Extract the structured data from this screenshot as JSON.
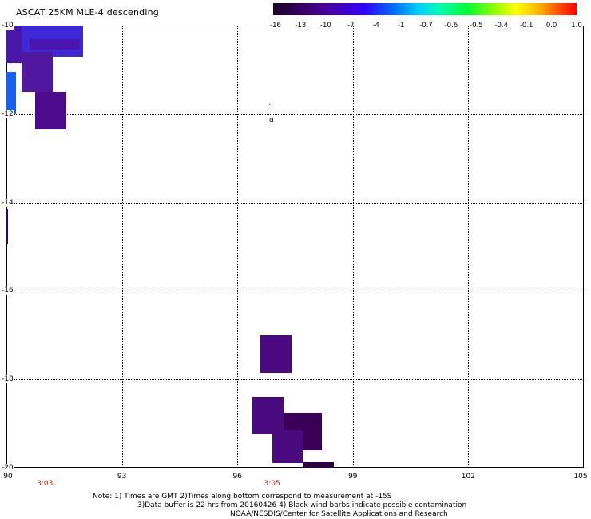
{
  "title": "ASCAT 25KM MLE-4 descending",
  "colorbar": {
    "labels": [
      "-16",
      "-13",
      "-10",
      "-7",
      "-4",
      "-1",
      "-0.7",
      "-0.6",
      "-0.5",
      "-0.4",
      "-0.1",
      "0.0",
      "1.0"
    ],
    "stops": [
      "#1a0026",
      "#3a0068",
      "#4b00a0",
      "#3000ff",
      "#0070ff",
      "#00d0ff",
      "#00ffb0",
      "#00ff30",
      "#a0ff00",
      "#ffff00",
      "#ffb000",
      "#ff5000",
      "#ff0000"
    ]
  },
  "axes": {
    "lon_ticks": [
      "90",
      "93",
      "96",
      "99",
      "102",
      "105"
    ],
    "lat_ticks": [
      "-10",
      "-12",
      "-14",
      "-16",
      "-18",
      "-20"
    ],
    "lon_range": [
      90,
      105
    ],
    "lat_range": [
      -20,
      -10
    ]
  },
  "times": [
    {
      "label": "3:03",
      "lon": 91.0
    },
    {
      "label": "3:05",
      "lon": 96.9
    }
  ],
  "note": {
    "line1": "Note: 1) Times are GMT 2)Times along bottom correspond to measurement at -15S",
    "line2": "3)Data buffer is 22 hrs from 20160426 4) Black wind barbs indicate possible contamination",
    "line3": "NOAA/NESDIS/Center for Satellite Applications and Research"
  },
  "data_cells": [
    {
      "lon": [
        90.0,
        90.6
      ],
      "lat": [
        -10.0,
        -10.85
      ],
      "color": "#4a18a8"
    },
    {
      "lon": [
        90.4,
        92.0
      ],
      "lat": [
        -10.0,
        -10.7
      ],
      "color": "#3e28d8"
    },
    {
      "lon": [
        90.6,
        91.9
      ],
      "lat": [
        -10.3,
        -10.55
      ],
      "color": "#4c14b0"
    },
    {
      "lon": [
        90.4,
        91.2
      ],
      "lat": [
        -10.6,
        -11.5
      ],
      "color": "#50189e"
    },
    {
      "lon": [
        90.0,
        90.25
      ],
      "lat": [
        -11.05,
        -12.0
      ],
      "color": "#1a60f0"
    },
    {
      "lon": [
        90.75,
        91.55
      ],
      "lat": [
        -11.5,
        -12.35
      ],
      "color": "#4c0a8c"
    },
    {
      "lon": [
        90.0,
        90.05
      ],
      "lat": [
        -14.15,
        -14.95
      ],
      "color": "#3a0060"
    },
    {
      "lon": [
        96.6,
        97.4
      ],
      "lat": [
        -17.0,
        -17.85
      ],
      "color": "#4a0a80"
    },
    {
      "lon": [
        96.4,
        97.2
      ],
      "lat": [
        -18.4,
        -19.25
      ],
      "color": "#4a0a80"
    },
    {
      "lon": [
        97.2,
        98.2
      ],
      "lat": [
        -18.75,
        -19.6
      ],
      "color": "#3a0058"
    },
    {
      "lon": [
        96.9,
        97.7
      ],
      "lat": [
        -19.15,
        -19.9
      ],
      "color": "#4a0a80"
    },
    {
      "lon": [
        97.7,
        98.5
      ],
      "lat": [
        -19.85,
        -20.0
      ],
      "color": "#2a0040"
    }
  ]
}
